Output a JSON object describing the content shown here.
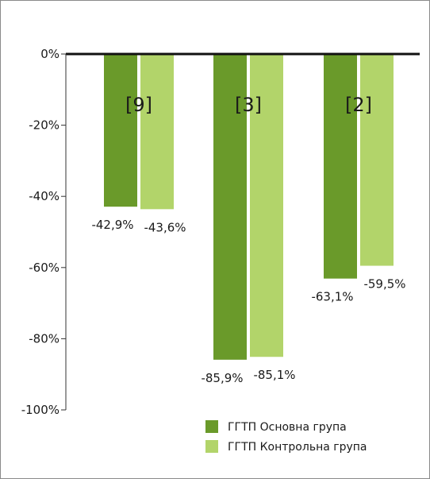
{
  "chart_data": {
    "type": "bar",
    "categories": [
      "[9]",
      "[3]",
      "[2]"
    ],
    "series": [
      {
        "name": "ГГТП Основна група",
        "values": [
          -42.9,
          -85.9,
          -63.1
        ],
        "labels": [
          "-42,9%",
          "-85,9%",
          "-63,1%"
        ],
        "color": "#6a9a2a"
      },
      {
        "name": "ГГТП Контрольна група",
        "values": [
          -43.6,
          -85.1,
          -59.5
        ],
        "labels": [
          "-43,6%",
          "-85,1%",
          "-59,5%"
        ],
        "color": "#b2d46a"
      }
    ],
    "yticks": [
      0,
      -20,
      -40,
      -60,
      -80,
      -100
    ],
    "ytick_labels": [
      "0%",
      "-20%",
      "-40%",
      "-60%",
      "-80%",
      "-100%"
    ],
    "ylim": [
      -100,
      0
    ],
    "title": "",
    "xlabel": "",
    "ylabel": "",
    "grid": false,
    "legend": "bottom-right"
  }
}
